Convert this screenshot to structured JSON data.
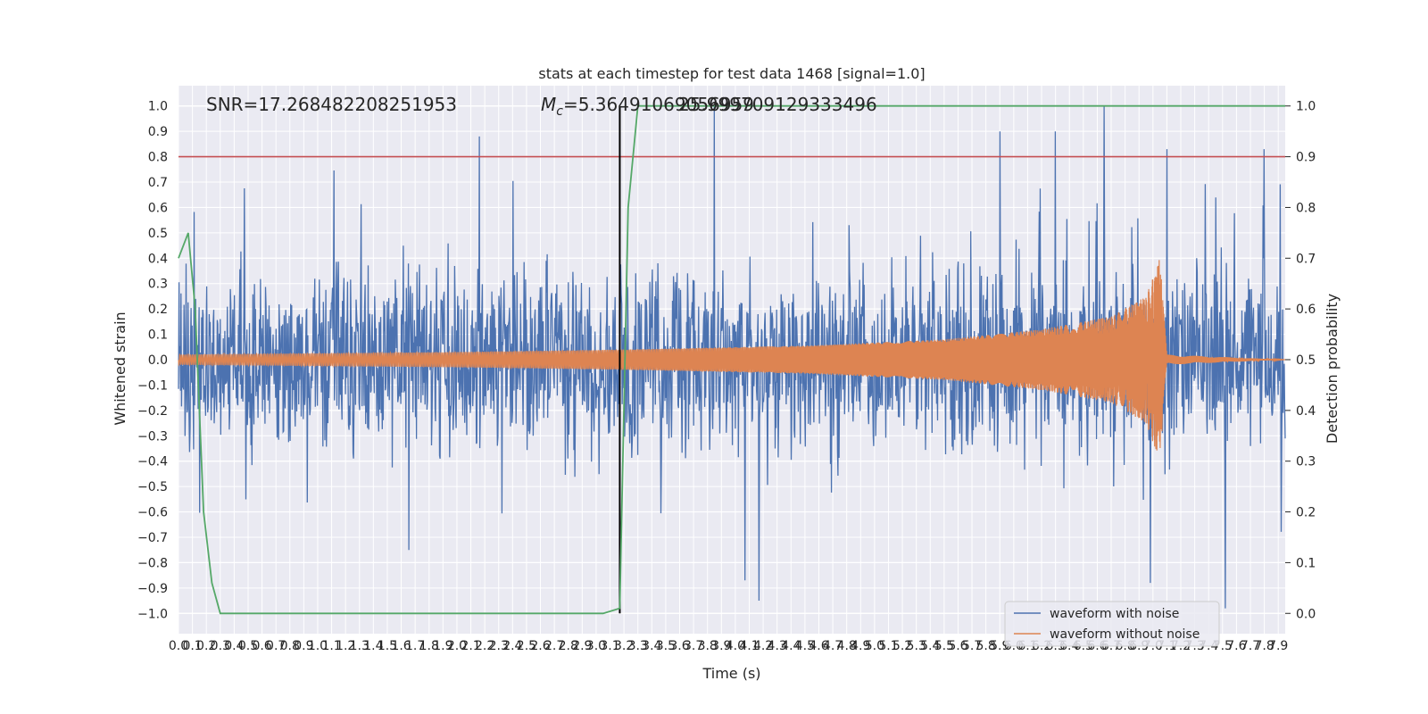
{
  "chart_data": {
    "type": "line",
    "title": "stats at each timestep for test data 1468 [signal=1.0]",
    "xlabel": "Time (s)",
    "ylabel_left": "Whitened strain",
    "ylabel_right": "Detection probability",
    "xlim": [
      0.0,
      7.95
    ],
    "ylim_left": [
      -1.08,
      1.08
    ],
    "ylim_right": [
      -0.04,
      1.04
    ],
    "x_ticks": [
      "0.0",
      "0.1",
      "0.2",
      "0.3",
      "0.4",
      "0.5",
      "0.6",
      "0.7",
      "0.8",
      "0.9",
      "1.0",
      "1.1",
      "1.2",
      "1.3",
      "1.4",
      "1.5",
      "1.6",
      "1.7",
      "1.8",
      "1.9",
      "2.0",
      "2.1",
      "2.2",
      "2.3",
      "2.4",
      "2.5",
      "2.6",
      "2.7",
      "2.8",
      "2.9",
      "3.0",
      "3.1",
      "3.2",
      "3.3",
      "3.4",
      "3.5",
      "3.6",
      "3.7",
      "3.8",
      "3.9",
      "4.0",
      "4.1",
      "4.2",
      "4.3",
      "4.4",
      "4.5",
      "4.6",
      "4.7",
      "4.8",
      "4.9",
      "5.0",
      "5.1",
      "5.2",
      "5.3",
      "5.4",
      "5.5",
      "5.6",
      "5.7",
      "5.8",
      "5.9",
      "6.0",
      "6.1",
      "6.2",
      "6.3",
      "6.4",
      "6.5",
      "6.6",
      "6.7",
      "6.8",
      "6.9",
      "7.0",
      "7.1",
      "7.2",
      "7.3",
      "7.4",
      "7.5",
      "7.6",
      "7.7",
      "7.8",
      "7.9"
    ],
    "y_ticks_left": [
      "1.0",
      "0.9",
      "0.8",
      "0.7",
      "0.6",
      "0.5",
      "0.4",
      "0.3",
      "0.2",
      "0.1",
      "0.0",
      "−0.1",
      "−0.2",
      "−0.3",
      "−0.4",
      "−0.5",
      "−0.6",
      "−0.7",
      "−0.8",
      "−0.9",
      "−1.0"
    ],
    "y_ticks_right": [
      "1.0",
      "0.9",
      "0.8",
      "0.7",
      "0.6",
      "0.5",
      "0.4",
      "0.3",
      "0.2",
      "0.1",
      "0.0"
    ],
    "annotations": {
      "snr": "SNR=17.268482208251953",
      "mc_symbol": "M",
      "mc_sub": "c",
      "mc_value": "=5.36491069056959",
      "overlap": "25.999709129333496"
    },
    "threshold_line": {
      "axis": "right",
      "value": 0.9,
      "color": "#c44e52"
    },
    "vertical_marker": {
      "x": 3.17,
      "color": "#000000"
    },
    "series": [
      {
        "name": "waveform with noise",
        "axis": "left",
        "color": "#4c72b0",
        "description": "noisy whitened strain, amplitude roughly +/-0.45 with spikes up to +/-1.0",
        "peaks": [
          {
            "x": 2.16,
            "y": 0.88
          },
          {
            "x": 3.85,
            "y": 1.0
          },
          {
            "x": 6.65,
            "y": 1.0
          },
          {
            "x": 7.1,
            "y": 0.83
          },
          {
            "x": 7.8,
            "y": 0.83
          },
          {
            "x": 5.9,
            "y": 0.9
          },
          {
            "x": 6.3,
            "y": 0.9
          },
          {
            "x": 7.52,
            "y": -0.98
          },
          {
            "x": 4.17,
            "y": -0.95
          },
          {
            "x": 4.07,
            "y": -0.87
          },
          {
            "x": 6.98,
            "y": -0.88
          }
        ]
      },
      {
        "name": "waveform without noise",
        "axis": "left",
        "color": "#dd8452",
        "description": "chirp signal growing in amplitude, peaking near t=7.06 then ringdown",
        "envelope": [
          {
            "x": 0.0,
            "y": 0.02
          },
          {
            "x": 2.0,
            "y": 0.03
          },
          {
            "x": 3.2,
            "y": 0.04
          },
          {
            "x": 4.5,
            "y": 0.055
          },
          {
            "x": 5.5,
            "y": 0.08
          },
          {
            "x": 6.2,
            "y": 0.12
          },
          {
            "x": 6.7,
            "y": 0.17
          },
          {
            "x": 6.95,
            "y": 0.25
          },
          {
            "x": 7.05,
            "y": 0.4
          },
          {
            "x": 7.1,
            "y": 0.02
          },
          {
            "x": 7.95,
            "y": 0.0
          }
        ]
      },
      {
        "name": "detection probability",
        "axis": "right",
        "color": "#55a868",
        "x": [
          0.0,
          0.07,
          0.12,
          0.18,
          0.24,
          0.3,
          1.0,
          2.0,
          2.8,
          3.05,
          3.17,
          3.23,
          3.3,
          3.5,
          4.5,
          5.5,
          6.5,
          7.95
        ],
        "y": [
          0.7,
          0.75,
          0.6,
          0.2,
          0.06,
          0.0,
          0.0,
          0.0,
          0.0,
          0.0,
          0.01,
          0.8,
          1.0,
          1.0,
          1.0,
          1.0,
          1.0,
          1.0
        ]
      }
    ],
    "legend": {
      "position": "lower-right",
      "entries": [
        {
          "label": "waveform with noise",
          "color": "#4c72b0"
        },
        {
          "label": "waveform without noise",
          "color": "#dd8452"
        }
      ]
    }
  }
}
